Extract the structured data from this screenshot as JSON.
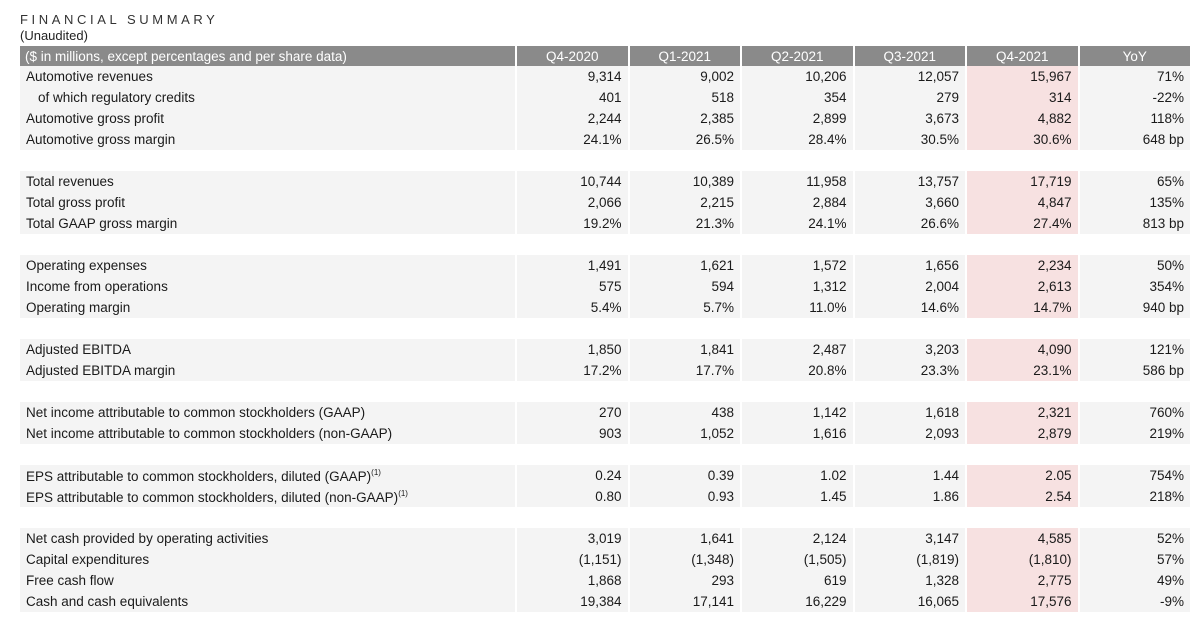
{
  "title": "FINANCIAL SUMMARY",
  "subtitle": "(Unaudited)",
  "table": {
    "header": {
      "label": "($ in millions, except percentages and per share data)",
      "columns": [
        "Q4-2020",
        "Q1-2021",
        "Q2-2021",
        "Q3-2021",
        "Q4-2021",
        "YoY"
      ]
    },
    "rows": [
      {
        "label": "Automotive revenues",
        "values": [
          "9,314",
          "9,002",
          "10,206",
          "12,057",
          "15,967",
          "71%"
        ]
      },
      {
        "label": "of which regulatory credits",
        "values": [
          "401",
          "518",
          "354",
          "279",
          "314",
          "-22%"
        ]
      },
      {
        "label": "Automotive gross profit",
        "values": [
          "2,244",
          "2,385",
          "2,899",
          "3,673",
          "4,882",
          "118%"
        ]
      },
      {
        "label": "Automotive gross margin",
        "values": [
          "24.1%",
          "26.5%",
          "28.4%",
          "30.5%",
          "30.6%",
          "648 bp"
        ]
      },
      {
        "label": "Total revenues",
        "values": [
          "10,744",
          "10,389",
          "11,958",
          "13,757",
          "17,719",
          "65%"
        ]
      },
      {
        "label": "Total gross profit",
        "values": [
          "2,066",
          "2,215",
          "2,884",
          "3,660",
          "4,847",
          "135%"
        ]
      },
      {
        "label": "Total GAAP gross margin",
        "values": [
          "19.2%",
          "21.3%",
          "24.1%",
          "26.6%",
          "27.4%",
          "813 bp"
        ]
      },
      {
        "label": "Operating expenses",
        "values": [
          "1,491",
          "1,621",
          "1,572",
          "1,656",
          "2,234",
          "50%"
        ]
      },
      {
        "label": "Income from operations",
        "values": [
          "575",
          "594",
          "1,312",
          "2,004",
          "2,613",
          "354%"
        ]
      },
      {
        "label": "Operating margin",
        "values": [
          "5.4%",
          "5.7%",
          "11.0%",
          "14.6%",
          "14.7%",
          "940 bp"
        ]
      },
      {
        "label": "Adjusted EBITDA",
        "values": [
          "1,850",
          "1,841",
          "2,487",
          "3,203",
          "4,090",
          "121%"
        ]
      },
      {
        "label": "Adjusted EBITDA margin",
        "values": [
          "17.2%",
          "17.7%",
          "20.8%",
          "23.3%",
          "23.1%",
          "586 bp"
        ]
      },
      {
        "label": "Net income attributable to common stockholders (GAAP)",
        "values": [
          "270",
          "438",
          "1,142",
          "1,618",
          "2,321",
          "760%"
        ]
      },
      {
        "label": "Net income attributable to common stockholders (non-GAAP)",
        "values": [
          "903",
          "1,052",
          "1,616",
          "2,093",
          "2,879",
          "219%"
        ]
      },
      {
        "label": "EPS attributable to common stockholders, diluted (GAAP)",
        "footnote": "(1)",
        "values": [
          "0.24",
          "0.39",
          "1.02",
          "1.44",
          "2.05",
          "754%"
        ]
      },
      {
        "label": "EPS attributable to common stockholders, diluted (non-GAAP)",
        "footnote": "(1)",
        "values": [
          "0.80",
          "0.93",
          "1.45",
          "1.86",
          "2.54",
          "218%"
        ]
      },
      {
        "label": "Net cash provided by operating activities",
        "values": [
          "3,019",
          "1,641",
          "2,124",
          "3,147",
          "4,585",
          "52%"
        ]
      },
      {
        "label": "Capital expenditures",
        "values": [
          "(1,151)",
          "(1,348)",
          "(1,505)",
          "(1,819)",
          "(1,810)",
          "57%"
        ]
      },
      {
        "label": "Free cash flow",
        "values": [
          "1,868",
          "293",
          "619",
          "1,328",
          "2,775",
          "49%"
        ]
      },
      {
        "label": "Cash and cash equivalents",
        "values": [
          "19,384",
          "17,141",
          "16,229",
          "16,065",
          "17,576",
          "-9%"
        ]
      }
    ]
  },
  "colors": {
    "header_bg": "#8a8a8a",
    "row_bg": "#f4f4f4",
    "highlight_bg": "#f7e1e1"
  }
}
